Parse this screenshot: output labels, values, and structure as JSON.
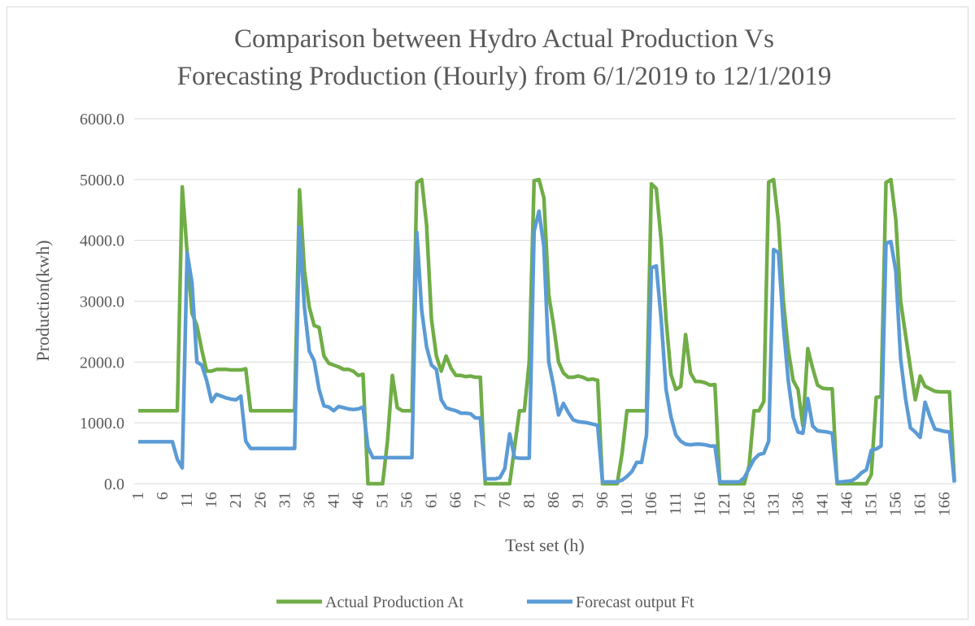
{
  "chart_data": {
    "type": "line",
    "title": [
      "Comparison between Hydro  Actual Production Vs",
      "Forecasting Production (Hourly) from 6/1/2019 to 12/1/2019"
    ],
    "x_label": "Test set (h)",
    "y_label": "Production(kwh)",
    "categories": [
      1,
      null,
      null,
      null,
      null,
      6,
      null,
      null,
      null,
      null,
      11,
      null,
      null,
      null,
      null,
      16,
      null,
      null,
      null,
      null,
      21,
      null,
      null,
      null,
      null,
      26,
      null,
      null,
      null,
      null,
      31,
      null,
      null,
      null,
      null,
      36,
      null,
      null,
      null,
      null,
      41,
      null,
      null,
      null,
      null,
      46,
      null,
      null,
      null,
      null,
      51,
      null,
      null,
      null,
      null,
      56,
      null,
      null,
      null,
      null,
      61,
      null,
      null,
      null,
      null,
      66,
      null,
      null,
      null,
      null,
      71,
      null,
      null,
      null,
      null,
      76,
      null,
      null,
      null,
      null,
      81,
      null,
      null,
      null,
      null,
      86,
      null,
      null,
      null,
      null,
      91,
      null,
      null,
      null,
      null,
      96,
      null,
      null,
      null,
      null,
      101,
      null,
      null,
      null,
      null,
      106,
      null,
      null,
      null,
      null,
      111,
      null,
      null,
      null,
      null,
      116,
      null,
      null,
      null,
      null,
      121,
      null,
      null,
      null,
      null,
      126,
      null,
      null,
      null,
      null,
      131,
      null,
      null,
      null,
      null,
      136,
      null,
      null,
      null,
      null,
      141,
      null,
      null,
      null,
      null,
      146,
      null,
      null,
      null,
      null,
      151,
      null,
      null,
      null,
      null,
      156,
      null,
      null,
      null,
      null,
      161,
      null,
      null,
      null,
      null,
      166,
      null,
      null
    ],
    "series": [
      {
        "name": "Actual Production At",
        "color": "#70ad47",
        "values": [
          1200,
          1200,
          1200,
          1200,
          1200,
          1200,
          1200,
          1200,
          1200,
          4880,
          3800,
          2800,
          2600,
          2200,
          1850,
          1850,
          1880,
          1880,
          1880,
          1870,
          1870,
          1870,
          1890,
          1200,
          1200,
          1200,
          1200,
          1200,
          1200,
          1200,
          1200,
          1200,
          1200,
          4830,
          3500,
          2900,
          2600,
          2570,
          2100,
          1980,
          1950,
          1920,
          1880,
          1880,
          1850,
          1780,
          1800,
          0,
          0,
          0,
          0,
          700,
          1780,
          1250,
          1200,
          1200,
          1200,
          4950,
          5000,
          4250,
          2700,
          2100,
          1850,
          2100,
          1900,
          1780,
          1780,
          1760,
          1770,
          1750,
          1750,
          0,
          0,
          0,
          0,
          0,
          0,
          600,
          1200,
          1200,
          2000,
          4980,
          5000,
          4700,
          3100,
          2600,
          2000,
          1820,
          1750,
          1750,
          1770,
          1750,
          1710,
          1720,
          1700,
          0,
          0,
          0,
          0,
          500,
          1200,
          1200,
          1200,
          1200,
          1200,
          4930,
          4850,
          4000,
          2700,
          1800,
          1550,
          1600,
          2450,
          1820,
          1680,
          1680,
          1660,
          1620,
          1630,
          0,
          0,
          0,
          0,
          0,
          0,
          300,
          1200,
          1200,
          1350,
          4960,
          5000,
          4300,
          3000,
          2200,
          1700,
          1550,
          950,
          2220,
          1900,
          1620,
          1570,
          1560,
          1560,
          0,
          0,
          0,
          0,
          0,
          0,
          0,
          150,
          1420,
          1430,
          4950,
          5000,
          4350,
          3000,
          2450,
          1900,
          1380,
          1770,
          1600,
          1560,
          1520,
          1510,
          1510,
          1510,
          50
        ]
      },
      {
        "name": "Forecast output Ft",
        "color": "#5b9bd5",
        "values": [
          690,
          690,
          690,
          690,
          690,
          690,
          690,
          690,
          400,
          260,
          3800,
          3300,
          2000,
          1950,
          1700,
          1350,
          1470,
          1440,
          1410,
          1390,
          1380,
          1440,
          700,
          580,
          580,
          580,
          580,
          580,
          580,
          580,
          580,
          580,
          580,
          4220,
          2900,
          2180,
          2020,
          1550,
          1280,
          1260,
          1200,
          1270,
          1250,
          1230,
          1220,
          1230,
          1260,
          600,
          430,
          430,
          430,
          430,
          430,
          430,
          430,
          430,
          430,
          4130,
          2850,
          2250,
          1950,
          1880,
          1380,
          1250,
          1220,
          1200,
          1160,
          1160,
          1150,
          1080,
          1080,
          80,
          80,
          80,
          100,
          250,
          820,
          430,
          420,
          420,
          420,
          4150,
          4480,
          3900,
          2000,
          1600,
          1130,
          1320,
          1170,
          1050,
          1020,
          1010,
          1000,
          980,
          960,
          30,
          30,
          30,
          30,
          60,
          120,
          200,
          350,
          350,
          800,
          3550,
          3580,
          2700,
          1550,
          1100,
          800,
          700,
          650,
          640,
          650,
          650,
          640,
          620,
          620,
          30,
          30,
          30,
          30,
          30,
          100,
          250,
          400,
          480,
          500,
          700,
          3850,
          3800,
          2600,
          1700,
          1100,
          850,
          830,
          1400,
          950,
          870,
          860,
          850,
          830,
          30,
          30,
          40,
          50,
          100,
          180,
          230,
          550,
          570,
          620,
          3950,
          3980,
          3500,
          2050,
          1400,
          920,
          850,
          760,
          1340,
          1100,
          900,
          880,
          860,
          850,
          20
        ]
      }
    ],
    "ylim": [
      0,
      6000
    ],
    "yticks": [
      {
        "value": 0,
        "label": "0.0"
      },
      {
        "value": 1000,
        "label": "1000.0"
      },
      {
        "value": 2000,
        "label": "2000.0"
      },
      {
        "value": 3000,
        "label": "3000.0"
      },
      {
        "value": 4000,
        "label": "4000.0"
      },
      {
        "value": 5000,
        "label": "5000.0"
      },
      {
        "value": 6000,
        "label": "6000.0"
      }
    ],
    "grid": true,
    "legend": "bottom"
  }
}
